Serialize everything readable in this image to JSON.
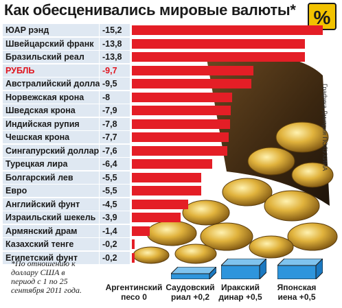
{
  "chart_data": {
    "type": "bar",
    "orientation": "horizontal",
    "title": "Как обесценивались мировые валюты*",
    "badge": "%",
    "categories": [
      "ЮАР рэнд",
      "Швейцарский франк",
      "Бразильский реал",
      "РУБЛЬ",
      "Австралийский доллар",
      "Норвежская крона",
      "Шведская крона",
      "Индийская рупия",
      "Чешская крона",
      "Сингапурский доллар",
      "Турецкая лира",
      "Болгарский лев",
      "Евро",
      "Английский фунт",
      "Израильский шекель",
      "Армянский драм",
      "Казахский тенге",
      "Египетский фунт"
    ],
    "values": [
      -15.2,
      -13.8,
      -13.8,
      -9.7,
      -9.5,
      -8,
      -7.9,
      -7.8,
      -7.7,
      -7.6,
      -6.4,
      -5.5,
      -5.5,
      -4.5,
      -3.9,
      -1.4,
      -0.2,
      -0.2
    ],
    "value_labels": [
      "-15,2",
      "-13,8",
      "-13,8",
      "-9,7",
      "-9,5",
      "-8",
      "-7,9",
      "-7,8",
      "-7,7",
      "-7,6",
      "-6,4",
      "-5,5",
      "-5,5",
      "-4,5",
      "-3,9",
      "-1,4",
      "-0,2",
      "-0,2"
    ],
    "highlight_index": 3,
    "bar_color": "#e41e26",
    "highlight_color": "#e0141e",
    "gains": [
      {
        "line1": "Аргентинский",
        "line2": "песо 0",
        "value": 0
      },
      {
        "line1": "Саудовский",
        "line2": "риал +0,2",
        "value": 0.2
      },
      {
        "line1": "Иракский",
        "line2": "динар +0,5",
        "value": 0.5
      },
      {
        "line1": "Японская",
        "line2": "иена +0,5",
        "value": 0.5
      }
    ],
    "footnote": "*По отношению к доллару США в период с 1 по 25 сентября 2011 года.",
    "credit": "Графика Дмитрия ПОЛУХИНА"
  }
}
